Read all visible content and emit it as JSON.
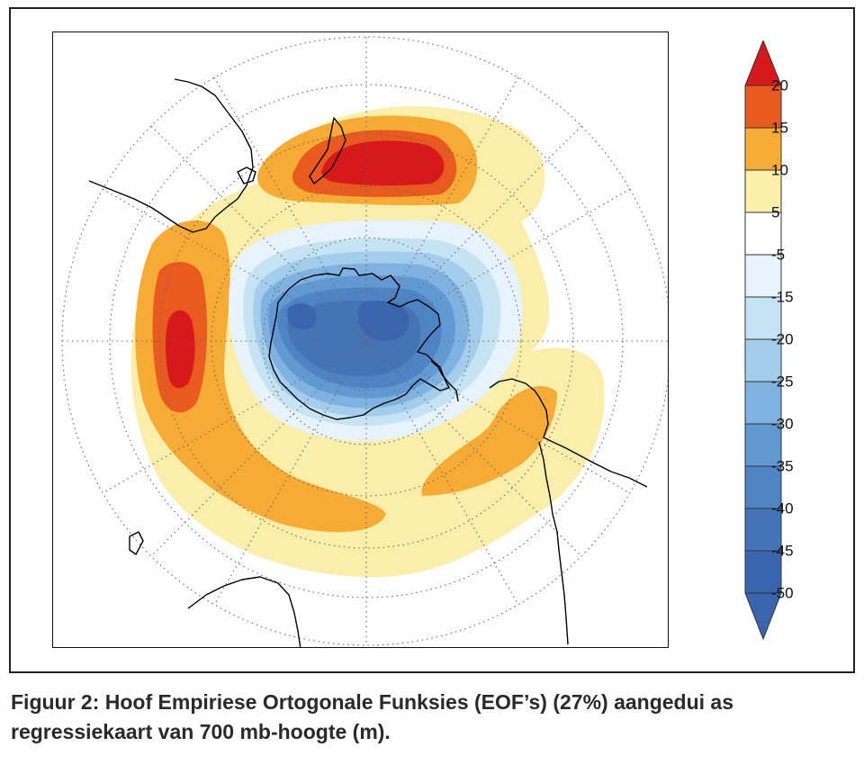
{
  "figure": {
    "caption_line1": "Figuur 2: Hoof Empiriese Ortogonale Funksies (EOF’s) (27%) aangedui as",
    "caption_line2": "regressiekaart van 700 mb-hoogte (m)."
  },
  "colorbar": {
    "labels": [
      "20",
      "15",
      "10",
      "5",
      "-5",
      "-15",
      "-20",
      "-25",
      "-30",
      "-35",
      "-40",
      "-45",
      "-50"
    ],
    "colors": {
      "gt20": "#d7191c",
      "15_20": "#e85a1f",
      "10_15": "#f6ab34",
      "5_10": "#fbeeab",
      "neg5_5": "#ffffff",
      "neg15_neg5": "#e6f3fb",
      "neg20_neg15": "#c6e3f4",
      "neg25_neg20": "#a3cdeb",
      "neg30_neg25": "#7fb2e0",
      "neg35_neg30": "#6199d2",
      "neg40_neg35": "#4f84c4",
      "neg45_neg40": "#4374b8",
      "lt_neg50": "#3a64ad"
    }
  },
  "map": {
    "projection": "south-polar-stereographic",
    "graticule": "dotted",
    "coastline_color": "#000000"
  }
}
